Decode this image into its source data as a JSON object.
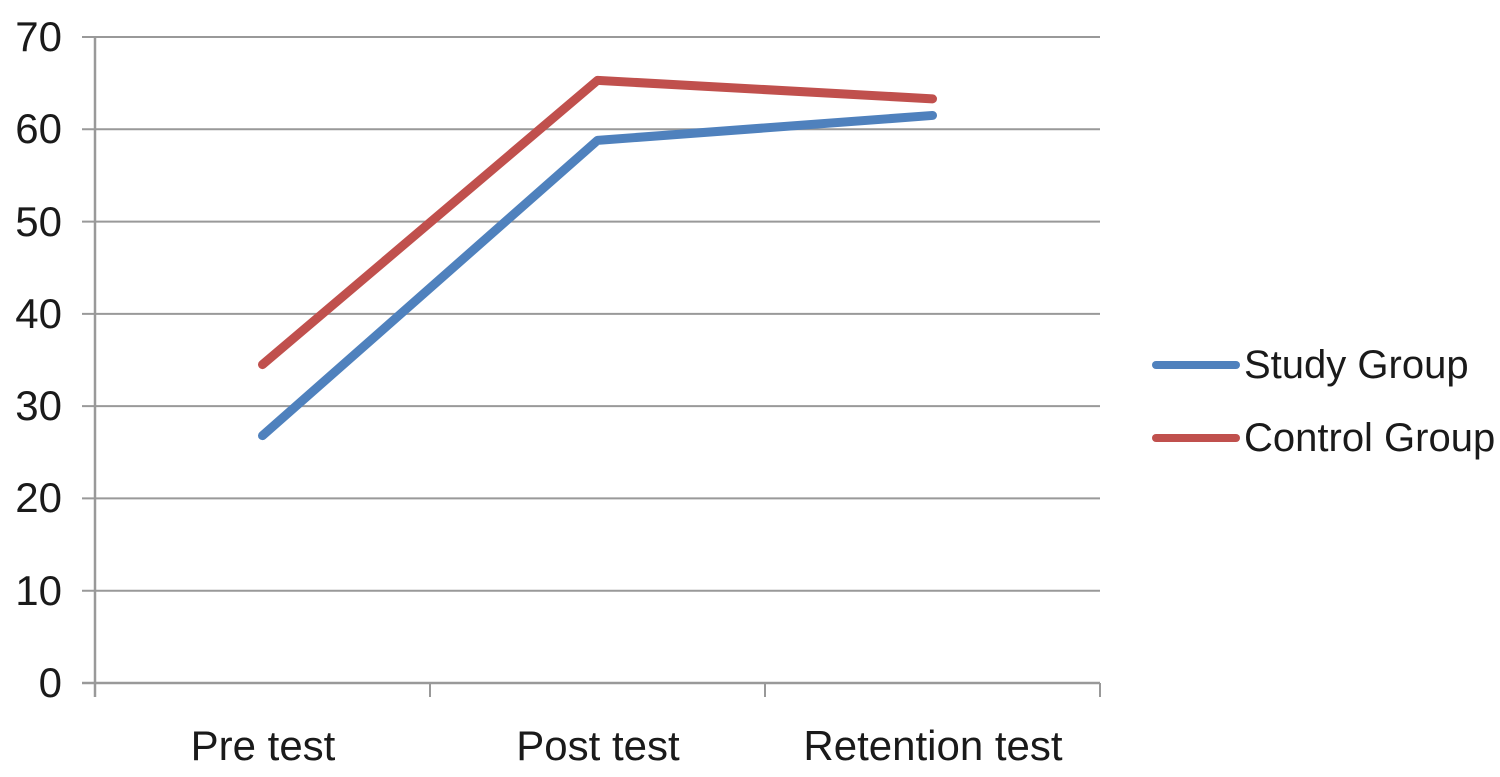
{
  "chart_data": {
    "type": "line",
    "categories": [
      "Pre test",
      "Post test",
      "Retention test"
    ],
    "series": [
      {
        "name": "Study Group",
        "color": "#4F81BD",
        "values": [
          26.8,
          58.8,
          61.5
        ]
      },
      {
        "name": "Control Group",
        "color": "#C0504D",
        "values": [
          34.5,
          65.3,
          63.3
        ]
      }
    ],
    "yticks": [
      "0",
      "10",
      "20",
      "30",
      "40",
      "50",
      "60",
      "70"
    ],
    "ylim": [
      0,
      70
    ],
    "ytick_step": 10,
    "grid": true,
    "legend_position": "right",
    "gridline_color": "#999999",
    "axis_color": "#999999",
    "text_color": "#1a1a1a",
    "line_width": 9
  }
}
